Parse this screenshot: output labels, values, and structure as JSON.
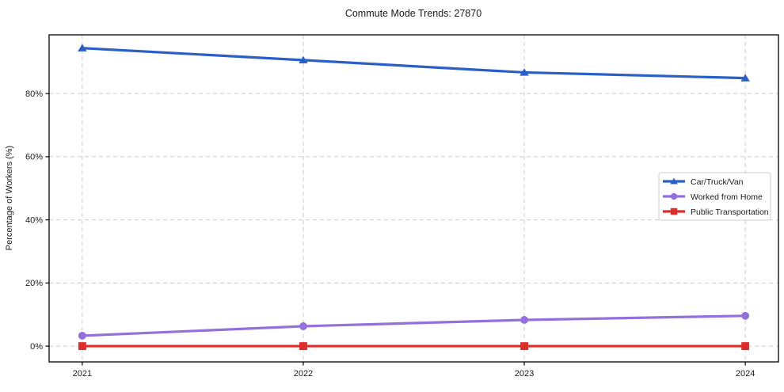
{
  "chart_data": {
    "type": "line",
    "title": "Commute Mode Trends: 27870",
    "xlabel": "",
    "ylabel": "Percentage of Workers (%)",
    "x": [
      2021,
      2022,
      2023,
      2024
    ],
    "series": [
      {
        "name": "Car/Truck/Van",
        "color": "#2a5fc7",
        "marker": "triangle",
        "values": [
          94.4,
          90.6,
          86.7,
          84.9
        ]
      },
      {
        "name": "Worked from Home",
        "color": "#9370db",
        "marker": "circle",
        "values": [
          3.3,
          6.3,
          8.3,
          9.6
        ]
      },
      {
        "name": "Public Transportation",
        "color": "#de2d2d",
        "marker": "square",
        "values": [
          0.0,
          0.0,
          0.0,
          0.0
        ]
      }
    ],
    "yticks": [
      0,
      20,
      40,
      60,
      80
    ],
    "ytick_labels": [
      "0%",
      "20%",
      "40%",
      "60%",
      "80%"
    ],
    "ylim": [
      -5,
      98.6
    ],
    "xlim": [
      2020.85,
      2024.15
    ],
    "grid": "dashed",
    "legend_position": "center right"
  }
}
